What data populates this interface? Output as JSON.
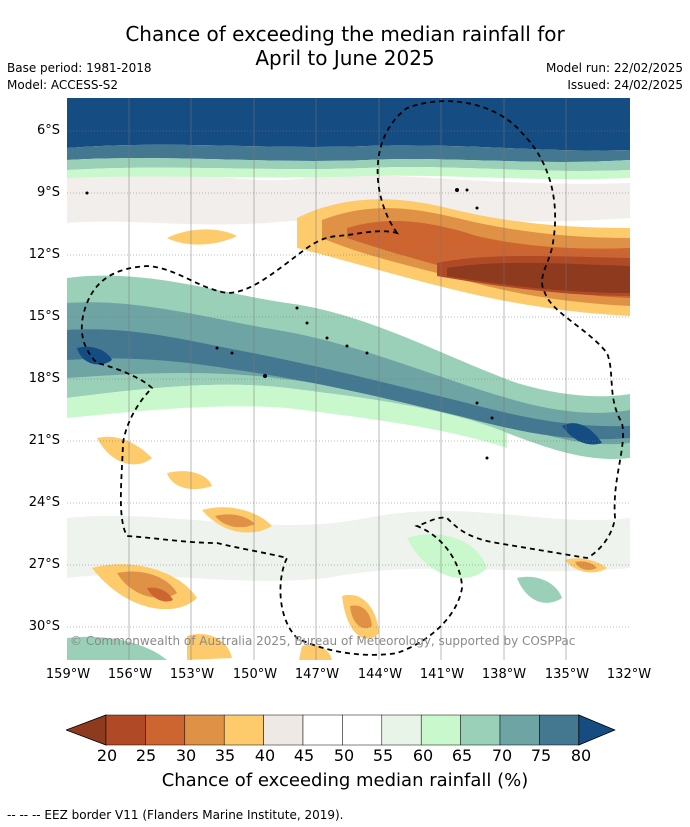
{
  "title_line1": "Chance of exceeding the median rainfall for",
  "title_line2": "April to June 2025",
  "meta_left": {
    "base_period": "Base period: 1981-2018",
    "model": "Model: ACCESS-S2"
  },
  "meta_right": {
    "model_run": "Model run: 22/02/2025",
    "issued": "Issued: 24/02/2025"
  },
  "y_ticks": [
    "6°S",
    "9°S",
    "12°S",
    "15°S",
    "18°S",
    "21°S",
    "24°S",
    "27°S",
    "30°S"
  ],
  "x_ticks": [
    "159°W",
    "156°W",
    "153°W",
    "150°W",
    "147°W",
    "144°W",
    "141°W",
    "138°W",
    "135°W",
    "132°W"
  ],
  "copyright": "© Commonwealth of Australia 2025, Bureau of Meteorology, supported by COSPPac",
  "colorbar": {
    "labels": [
      "20",
      "25",
      "30",
      "35",
      "40",
      "45",
      "50",
      "55",
      "60",
      "65",
      "70",
      "75",
      "80"
    ],
    "colors": [
      "#8e3a1e",
      "#b04a26",
      "#cd6530",
      "#df9246",
      "#fecb6c",
      "#efe9e6",
      "#ffffff",
      "#ffffff",
      "#e8f4e8",
      "#c8f8cc",
      "#9ad0b8",
      "#6ea4a4",
      "#447890",
      "#154d82"
    ],
    "title": "Chance of exceeding median rainfall (%)"
  },
  "legend_note": "-- -- -- EEZ border V11 (Flanders Marine Institute, 2019)."
}
